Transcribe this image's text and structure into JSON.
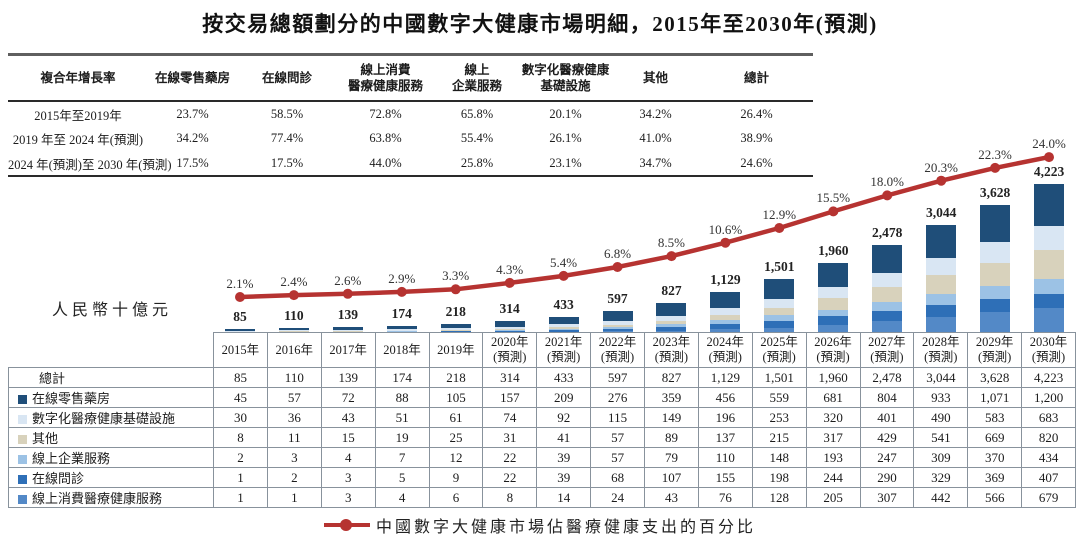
{
  "title": "按交易總額劃分的中國數字大健康市場明細，2015年至2030年(預測)",
  "unit_label": "人民幣十億元",
  "cagr_table": {
    "col_headers": [
      "複合年增長率",
      "在線零售藥房",
      "在線問診",
      "線上消費\n醫療健康服務",
      "線上\n企業服務",
      "數字化醫療健康\n基礎設施",
      "其他",
      "總計"
    ],
    "rows": [
      {
        "label": "2015年至2019年",
        "values": [
          "23.7%",
          "58.5%",
          "72.8%",
          "65.8%",
          "20.1%",
          "34.2%",
          "26.4%"
        ]
      },
      {
        "label": "2019 年至 2024 年(預測)",
        "values": [
          "34.2%",
          "77.4%",
          "63.8%",
          "55.4%",
          "26.1%",
          "41.0%",
          "38.9%"
        ]
      },
      {
        "label": "2024 年(預測)至 2030 年(預測)",
        "values": [
          "17.5%",
          "17.5%",
          "44.0%",
          "25.8%",
          "23.1%",
          "34.7%",
          "24.6%"
        ]
      }
    ]
  },
  "chart_data": {
    "type": "bar",
    "subtype": "stacked-bar-with-line",
    "title": "按交易總額劃分的中國數字大健康市場明細，2015年至2030年(預測)",
    "ylabel": "人民幣十億元",
    "categories": [
      "2015年",
      "2016年",
      "2017年",
      "2018年",
      "2019年",
      "2020年(預測)",
      "2021年(預測)",
      "2022年(預測)",
      "2023年(預測)",
      "2024年(預測)",
      "2025年(預測)",
      "2026年(預測)",
      "2027年(預測)",
      "2028年(預測)",
      "2029年(預測)",
      "2030年(預測)"
    ],
    "total_label": "總計",
    "totals": [
      85,
      110,
      139,
      174,
      218,
      314,
      433,
      597,
      827,
      1129,
      1501,
      1960,
      2478,
      3044,
      3628,
      4223
    ],
    "series": [
      {
        "name": "在線零售藥房",
        "color": "#1F4E79",
        "values": [
          45,
          57,
          72,
          88,
          105,
          157,
          209,
          276,
          359,
          456,
          559,
          681,
          804,
          933,
          1071,
          1200
        ]
      },
      {
        "name": "數字化醫療健康基礎設施",
        "color": "#D9E6F3",
        "values": [
          30,
          36,
          43,
          51,
          61,
          74,
          92,
          115,
          149,
          196,
          253,
          320,
          401,
          490,
          583,
          683
        ]
      },
      {
        "name": "其他",
        "color": "#D8D2BC",
        "values": [
          8,
          11,
          15,
          19,
          25,
          31,
          41,
          57,
          89,
          137,
          215,
          317,
          429,
          541,
          669,
          820
        ]
      },
      {
        "name": "線上企業服務",
        "color": "#9CC2E5",
        "values": [
          2,
          3,
          4,
          7,
          12,
          22,
          39,
          57,
          79,
          110,
          148,
          193,
          247,
          309,
          370,
          434
        ]
      },
      {
        "name": "在線問診",
        "color": "#2E6FB7",
        "values": [
          1,
          2,
          3,
          5,
          9,
          22,
          39,
          68,
          107,
          155,
          198,
          244,
          290,
          329,
          369,
          407
        ]
      },
      {
        "name": "線上消費醫療健康服務",
        "color": "#5389C7",
        "values": [
          1,
          1,
          3,
          4,
          6,
          8,
          14,
          24,
          43,
          76,
          128,
          205,
          307,
          442,
          566,
          679
        ]
      }
    ],
    "stack_order_bottom_to_top": [
      "線上消費醫療健康服務",
      "在線問診",
      "線上企業服務",
      "其他",
      "數字化醫療健康基礎設施",
      "在線零售藥房"
    ],
    "line": {
      "name": "中國數字大健康市場佔醫療健康支出的百分比",
      "color": "#B63331",
      "values_pct": [
        2.1,
        2.4,
        2.6,
        2.9,
        3.3,
        4.3,
        5.4,
        6.8,
        8.5,
        10.6,
        12.9,
        15.5,
        18.0,
        20.3,
        22.3,
        24.0
      ]
    },
    "legend_position": "bottom",
    "grid": false
  },
  "legend": {
    "label": "中國數字大健康市場佔醫療健康支出的百分比"
  }
}
